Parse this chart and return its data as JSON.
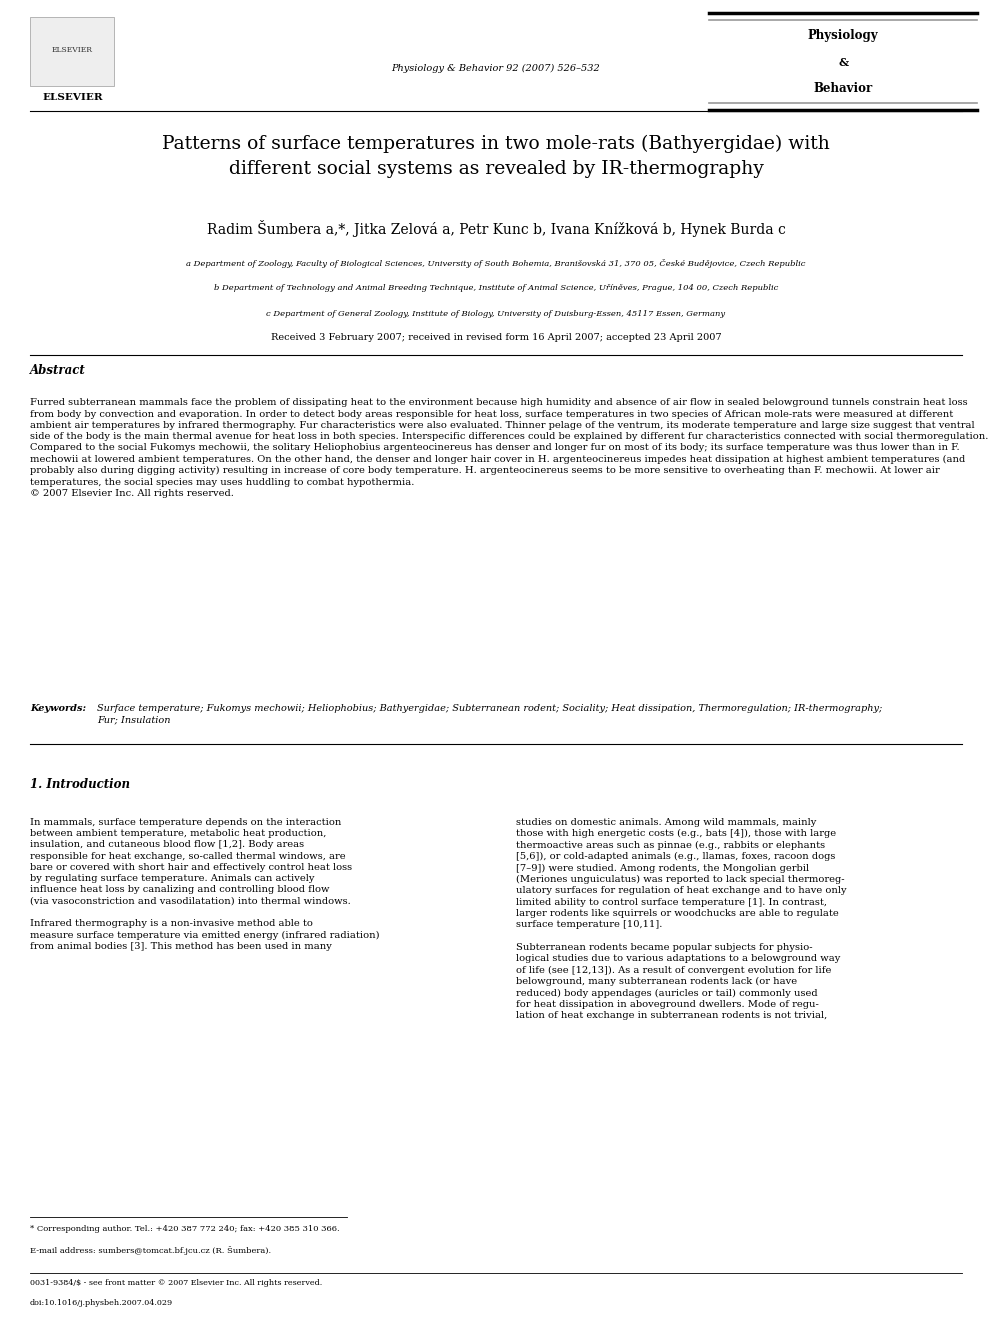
{
  "background_color": "#ffffff",
  "page_width": 9.92,
  "page_height": 13.23,
  "dpi": 100,
  "header": {
    "elsevier_text": "ELSEVIER",
    "journal_line1": "Physiology & Behavior 92 (2007) 526–532",
    "pb_title_line1": "Physiology",
    "pb_title_line2": "&",
    "pb_title_line3": "Behavior"
  },
  "article_title": "Patterns of surface temperatures in two mole-rats (Bathyergidae) with\ndifferent social systems as revealed by IR-thermography",
  "authors": "Radim Šumbera a,*, Jitka Zelová a, Petr Kunc b, Ivana Knížková b, Hynek Burda c",
  "affiliations": [
    "a Department of Zoology, Faculty of Biological Sciences, University of South Bohemia, Branišovská 31, 370 05, České Budějovice, Czech Republic",
    "b Department of Technology and Animal Breeding Technique, Institute of Animal Science, Uříněves, Prague, 104 00, Czech Republic",
    "c Department of General Zoology, Institute of Biology, University of Duisburg-Essen, 45117 Essen, Germany"
  ],
  "received_line": "Received 3 February 2007; received in revised form 16 April 2007; accepted 23 April 2007",
  "abstract_title": "Abstract",
  "abstract_text": "Furred subterranean mammals face the problem of dissipating heat to the environment because high humidity and absence of air flow in sealed belowground tunnels constrain heat loss from body by convection and evaporation. In order to detect body areas responsible for heat loss, surface temperatures in two species of African mole-rats were measured at different ambient air temperatures by infrared thermography. Fur characteristics were also evaluated. Thinner pelage of the ventrum, its moderate temperature and large size suggest that ventral side of the body is the main thermal avenue for heat loss in both species. Interspecific differences could be explained by different fur characteristics connected with social thermoregulation. Compared to the social Fukomys mechowii, the solitary Heliophobius argenteocinereus has denser and longer fur on most of its body; its surface temperature was thus lower than in F. mechowii at lowered ambient temperatures. On the other hand, the denser and longer hair cover in H. argenteocinereus impedes heat dissipation at highest ambient temperatures (and probably also during digging activity) resulting in increase of core body temperature. H. argenteocinereus seems to be more sensitive to overheating than F. mechowii. At lower air temperatures, the social species may uses huddling to combat hypothermia.\n© 2007 Elsevier Inc. All rights reserved.",
  "keywords_label": "Keywords:",
  "keywords_text": "Surface temperature; Fukomys mechowii; Heliophobius; Bathyergidae; Subterranean rodent; Sociality; Heat dissipation, Thermoregulation; IR-thermography;\nFur; Insulation",
  "section1_title": "1. Introduction",
  "intro_col1": "In mammals, surface temperature depends on the interaction\nbetween ambient temperature, metabolic heat production,\ninsulation, and cutaneous blood flow [1,2]. Body areas\nresponsible for heat exchange, so-called thermal windows, are\nbare or covered with short hair and effectively control heat loss\nby regulating surface temperature. Animals can actively\ninfluence heat loss by canalizing and controlling blood flow\n(via vasoconstriction and vasodilatation) into thermal windows.\n\nInfrared thermography is a non-invasive method able to\nmeasure surface temperature via emitted energy (infrared radiation)\nfrom animal bodies [3]. This method has been used in many",
  "intro_col2": "studies on domestic animals. Among wild mammals, mainly\nthose with high energetic costs (e.g., bats [4]), those with large\nthermoactive areas such as pinnae (e.g., rabbits or elephants\n[5,6]), or cold-adapted animals (e.g., llamas, foxes, racoon dogs\n[7–9]) were studied. Among rodents, the Mongolian gerbil\n(Meriones unguiculatus) was reported to lack special thermoreg-\nulatory surfaces for regulation of heat exchange and to have only\nlimited ability to control surface temperature [1]. In contrast,\nlarger rodents like squirrels or woodchucks are able to regulate\nsurface temperature [10,11].\n\nSubterranean rodents became popular subjects for physio-\nlogical studies due to various adaptations to a belowground way\nof life (see [12,13]). As a result of convergent evolution for life\nbelowground, many subterranean rodents lack (or have\nreduced) body appendages (auricles or tail) commonly used\nfor heat dissipation in aboveground dwellers. Mode of regu-\nlation of heat exchange in subterranean rodents is not trivial,",
  "footer_line1": "* Corresponding author. Tel.: +420 387 772 240; fax: +420 385 310 366.",
  "footer_line2": "E-mail address: sumbers@tomcat.bf.jcu.cz (R. Šumbera).",
  "footer_line3": "0031-9384/$ - see front matter © 2007 Elsevier Inc. All rights reserved.",
  "footer_line4": "doi:10.1016/j.physbeh.2007.04.029"
}
